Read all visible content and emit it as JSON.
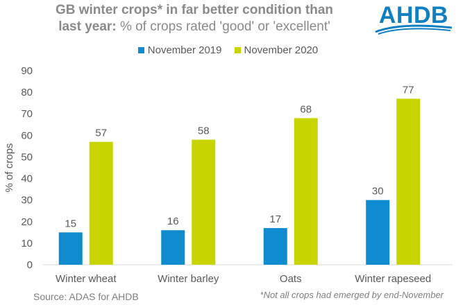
{
  "header": {
    "title_bold_1": "GB winter crops* in far better condition than",
    "title_bold_2": "last year:",
    "title_plain_2": "% of crops rated 'good' or 'excellent'"
  },
  "logo": {
    "text": "AHDB",
    "color": "#0f7fc3"
  },
  "footer": {
    "source": "Source: ADAS for AHDB",
    "note": "*Not all crops had emerged by end-November"
  },
  "chart_data": {
    "type": "bar",
    "categories": [
      "Winter wheat",
      "Winter barley",
      "Oats",
      "Winter rapeseed"
    ],
    "series": [
      {
        "name": "November 2019",
        "color": "#0f8bd0",
        "values": [
          15,
          16,
          17,
          30
        ]
      },
      {
        "name": "November 2020",
        "color": "#c8d400",
        "values": [
          57,
          58,
          68,
          77
        ]
      }
    ],
    "title": "GB winter crops* in far better condition than last year: % of crops rated 'good' or 'excellent'",
    "xlabel": "",
    "ylabel": "% of crops",
    "ylim": [
      0,
      90
    ],
    "yticks": [
      0,
      10,
      20,
      30,
      40,
      50,
      60,
      70,
      80,
      90
    ],
    "grid": false,
    "legend": "top"
  }
}
